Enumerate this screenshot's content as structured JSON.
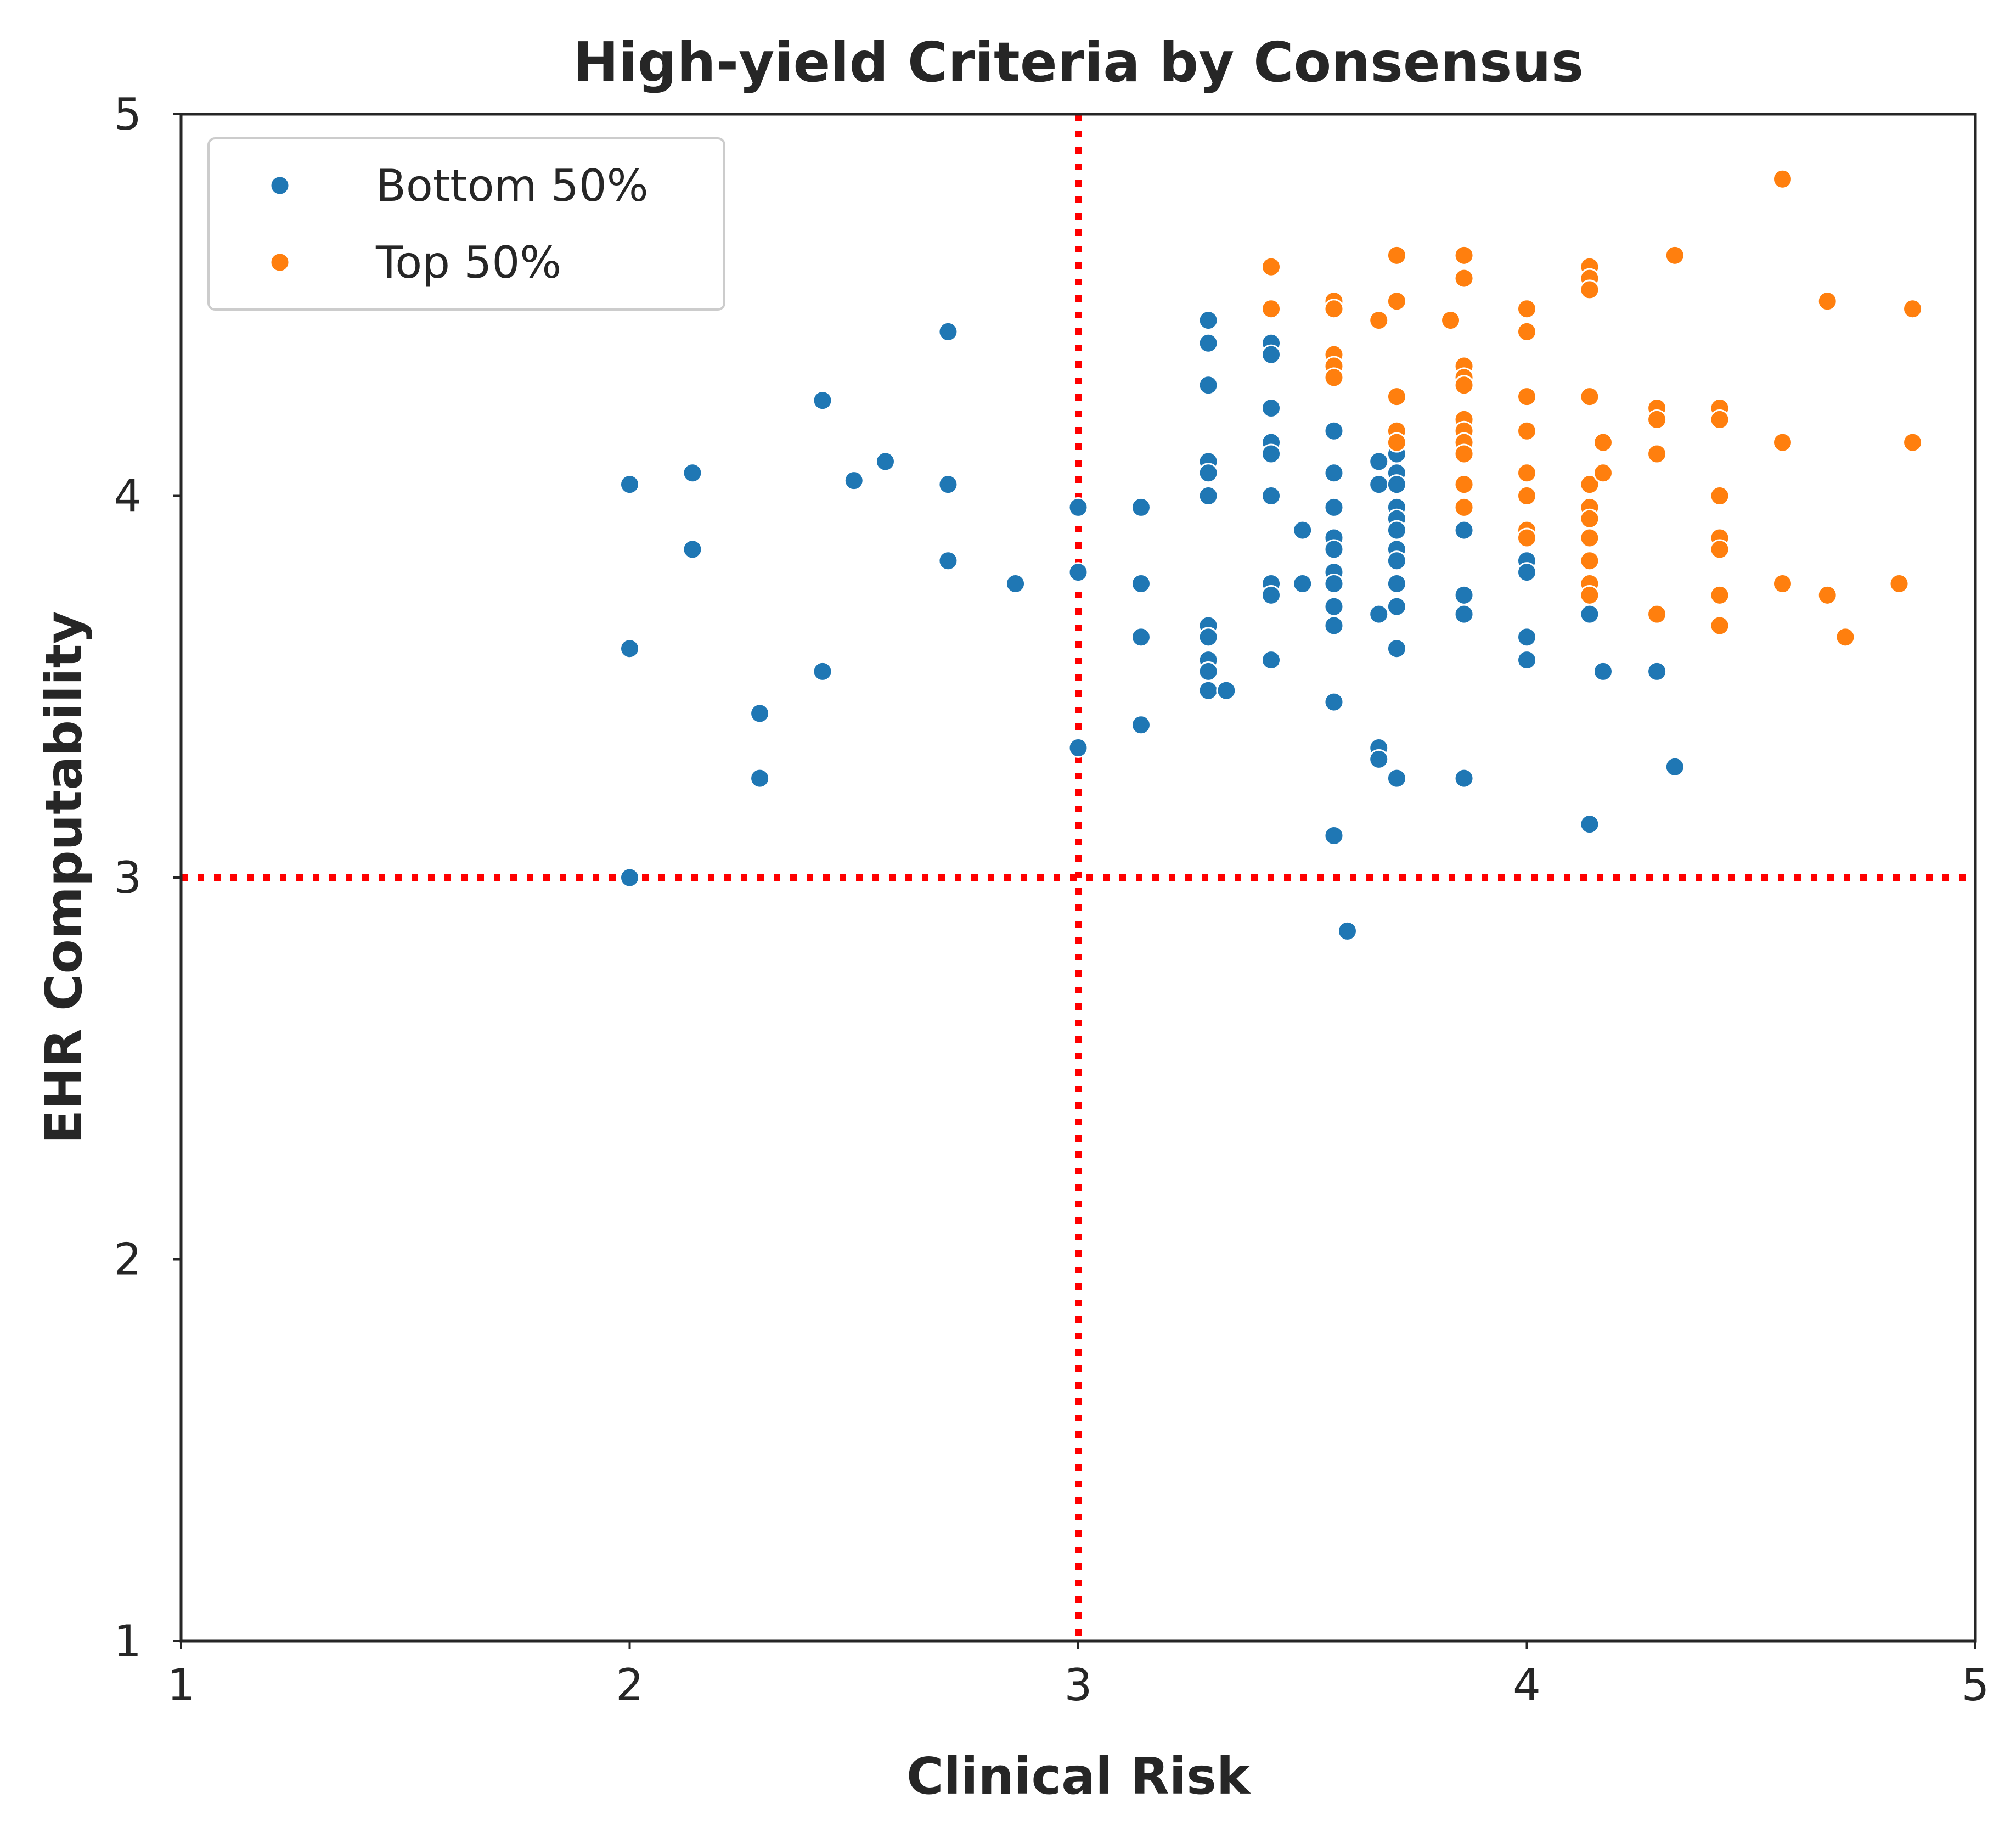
{
  "chart_data": {
    "type": "scatter",
    "title": "High-yield Criteria by Consensus",
    "xlabel": "Clinical Risk",
    "ylabel": "EHR Computability",
    "xlim": [
      1,
      5
    ],
    "ylim": [
      1,
      5
    ],
    "xticks": [
      "1",
      "2",
      "3",
      "4",
      "5"
    ],
    "yticks": [
      "1",
      "2",
      "3",
      "4",
      "5"
    ],
    "grid": false,
    "legend_position": "upper-left",
    "reference_lines": {
      "x": 3,
      "y": 3,
      "color": "#ff0000",
      "style": "dotted"
    },
    "series": [
      {
        "name": "Bottom 50%",
        "color": "#1f77b4",
        "points": [
          [
            2.0,
            4.03
          ],
          [
            2.0,
            3.6
          ],
          [
            2.0,
            3.0
          ],
          [
            2.14,
            4.06
          ],
          [
            2.14,
            3.86
          ],
          [
            2.29,
            3.43
          ],
          [
            2.29,
            3.26
          ],
          [
            2.43,
            4.25
          ],
          [
            2.43,
            3.54
          ],
          [
            2.5,
            4.04
          ],
          [
            2.57,
            4.09
          ],
          [
            2.71,
            4.43
          ],
          [
            2.71,
            4.03
          ],
          [
            2.71,
            3.83
          ],
          [
            2.86,
            3.77
          ],
          [
            3.0,
            3.97
          ],
          [
            3.0,
            3.8
          ],
          [
            3.0,
            3.34
          ],
          [
            3.14,
            3.97
          ],
          [
            3.14,
            3.77
          ],
          [
            3.14,
            3.63
          ],
          [
            3.14,
            3.4
          ],
          [
            3.29,
            4.46
          ],
          [
            3.29,
            4.4
          ],
          [
            3.29,
            4.29
          ],
          [
            3.29,
            4.09
          ],
          [
            3.29,
            4.06
          ],
          [
            3.29,
            4.0
          ],
          [
            3.29,
            3.66
          ],
          [
            3.29,
            3.63
          ],
          [
            3.29,
            3.57
          ],
          [
            3.29,
            3.54
          ],
          [
            3.29,
            3.49
          ],
          [
            3.33,
            3.49
          ],
          [
            3.43,
            4.4
          ],
          [
            3.43,
            4.37
          ],
          [
            3.43,
            4.23
          ],
          [
            3.43,
            4.14
          ],
          [
            3.43,
            4.11
          ],
          [
            3.43,
            4.0
          ],
          [
            3.43,
            3.77
          ],
          [
            3.43,
            3.74
          ],
          [
            3.43,
            3.57
          ],
          [
            3.5,
            3.91
          ],
          [
            3.5,
            3.77
          ],
          [
            3.57,
            4.17
          ],
          [
            3.57,
            4.06
          ],
          [
            3.57,
            3.97
          ],
          [
            3.57,
            3.89
          ],
          [
            3.57,
            3.86
          ],
          [
            3.57,
            3.8
          ],
          [
            3.57,
            3.77
          ],
          [
            3.57,
            3.71
          ],
          [
            3.57,
            3.66
          ],
          [
            3.57,
            3.46
          ],
          [
            3.57,
            3.11
          ],
          [
            3.6,
            2.86
          ],
          [
            3.67,
            4.09
          ],
          [
            3.67,
            4.03
          ],
          [
            3.67,
            3.69
          ],
          [
            3.67,
            3.34
          ],
          [
            3.67,
            3.31
          ],
          [
            3.71,
            4.11
          ],
          [
            3.71,
            4.06
          ],
          [
            3.71,
            4.03
          ],
          [
            3.71,
            3.97
          ],
          [
            3.71,
            3.94
          ],
          [
            3.71,
            3.91
          ],
          [
            3.71,
            3.86
          ],
          [
            3.71,
            3.83
          ],
          [
            3.71,
            3.77
          ],
          [
            3.71,
            3.71
          ],
          [
            3.71,
            3.6
          ],
          [
            3.71,
            3.26
          ],
          [
            3.86,
            3.91
          ],
          [
            3.86,
            3.74
          ],
          [
            3.86,
            3.69
          ],
          [
            3.86,
            3.26
          ],
          [
            4.0,
            3.83
          ],
          [
            4.0,
            3.8
          ],
          [
            4.0,
            3.63
          ],
          [
            4.0,
            3.57
          ],
          [
            4.14,
            3.69
          ],
          [
            4.14,
            3.14
          ],
          [
            4.17,
            3.54
          ],
          [
            4.29,
            3.54
          ],
          [
            4.33,
            3.29
          ]
        ]
      },
      {
        "name": "Top 50%",
        "color": "#ff7f0e",
        "points": [
          [
            3.43,
            4.6
          ],
          [
            3.43,
            4.49
          ],
          [
            3.57,
            4.51
          ],
          [
            3.57,
            4.49
          ],
          [
            3.57,
            4.37
          ],
          [
            3.57,
            4.34
          ],
          [
            3.57,
            4.31
          ],
          [
            3.67,
            4.46
          ],
          [
            3.71,
            4.63
          ],
          [
            3.71,
            4.51
          ],
          [
            3.71,
            4.26
          ],
          [
            3.71,
            4.17
          ],
          [
            3.71,
            4.14
          ],
          [
            3.83,
            4.46
          ],
          [
            3.86,
            4.63
          ],
          [
            3.86,
            4.57
          ],
          [
            3.86,
            4.34
          ],
          [
            3.86,
            4.31
          ],
          [
            3.86,
            4.29
          ],
          [
            3.86,
            4.2
          ],
          [
            3.86,
            4.17
          ],
          [
            3.86,
            4.14
          ],
          [
            3.86,
            4.11
          ],
          [
            3.86,
            4.03
          ],
          [
            3.86,
            3.97
          ],
          [
            4.0,
            4.49
          ],
          [
            4.0,
            4.43
          ],
          [
            4.0,
            4.26
          ],
          [
            4.0,
            4.17
          ],
          [
            4.0,
            4.06
          ],
          [
            4.0,
            4.0
          ],
          [
            4.0,
            3.91
          ],
          [
            4.0,
            3.89
          ],
          [
            4.14,
            4.6
          ],
          [
            4.14,
            4.57
          ],
          [
            4.14,
            4.54
          ],
          [
            4.14,
            4.26
          ],
          [
            4.14,
            4.03
          ],
          [
            4.14,
            3.97
          ],
          [
            4.14,
            3.94
          ],
          [
            4.14,
            3.89
          ],
          [
            4.14,
            3.83
          ],
          [
            4.14,
            3.77
          ],
          [
            4.14,
            3.74
          ],
          [
            4.17,
            4.14
          ],
          [
            4.17,
            4.06
          ],
          [
            4.29,
            4.23
          ],
          [
            4.29,
            4.2
          ],
          [
            4.29,
            4.11
          ],
          [
            4.29,
            3.69
          ],
          [
            4.33,
            4.63
          ],
          [
            4.43,
            4.23
          ],
          [
            4.43,
            4.2
          ],
          [
            4.43,
            4.0
          ],
          [
            4.43,
            3.89
          ],
          [
            4.43,
            3.86
          ],
          [
            4.43,
            3.74
          ],
          [
            4.43,
            3.66
          ],
          [
            4.57,
            4.83
          ],
          [
            4.57,
            4.14
          ],
          [
            4.57,
            3.77
          ],
          [
            4.67,
            4.51
          ],
          [
            4.67,
            3.74
          ],
          [
            4.71,
            3.63
          ],
          [
            4.83,
            3.77
          ],
          [
            4.86,
            4.49
          ],
          [
            4.86,
            4.14
          ]
        ]
      }
    ]
  }
}
